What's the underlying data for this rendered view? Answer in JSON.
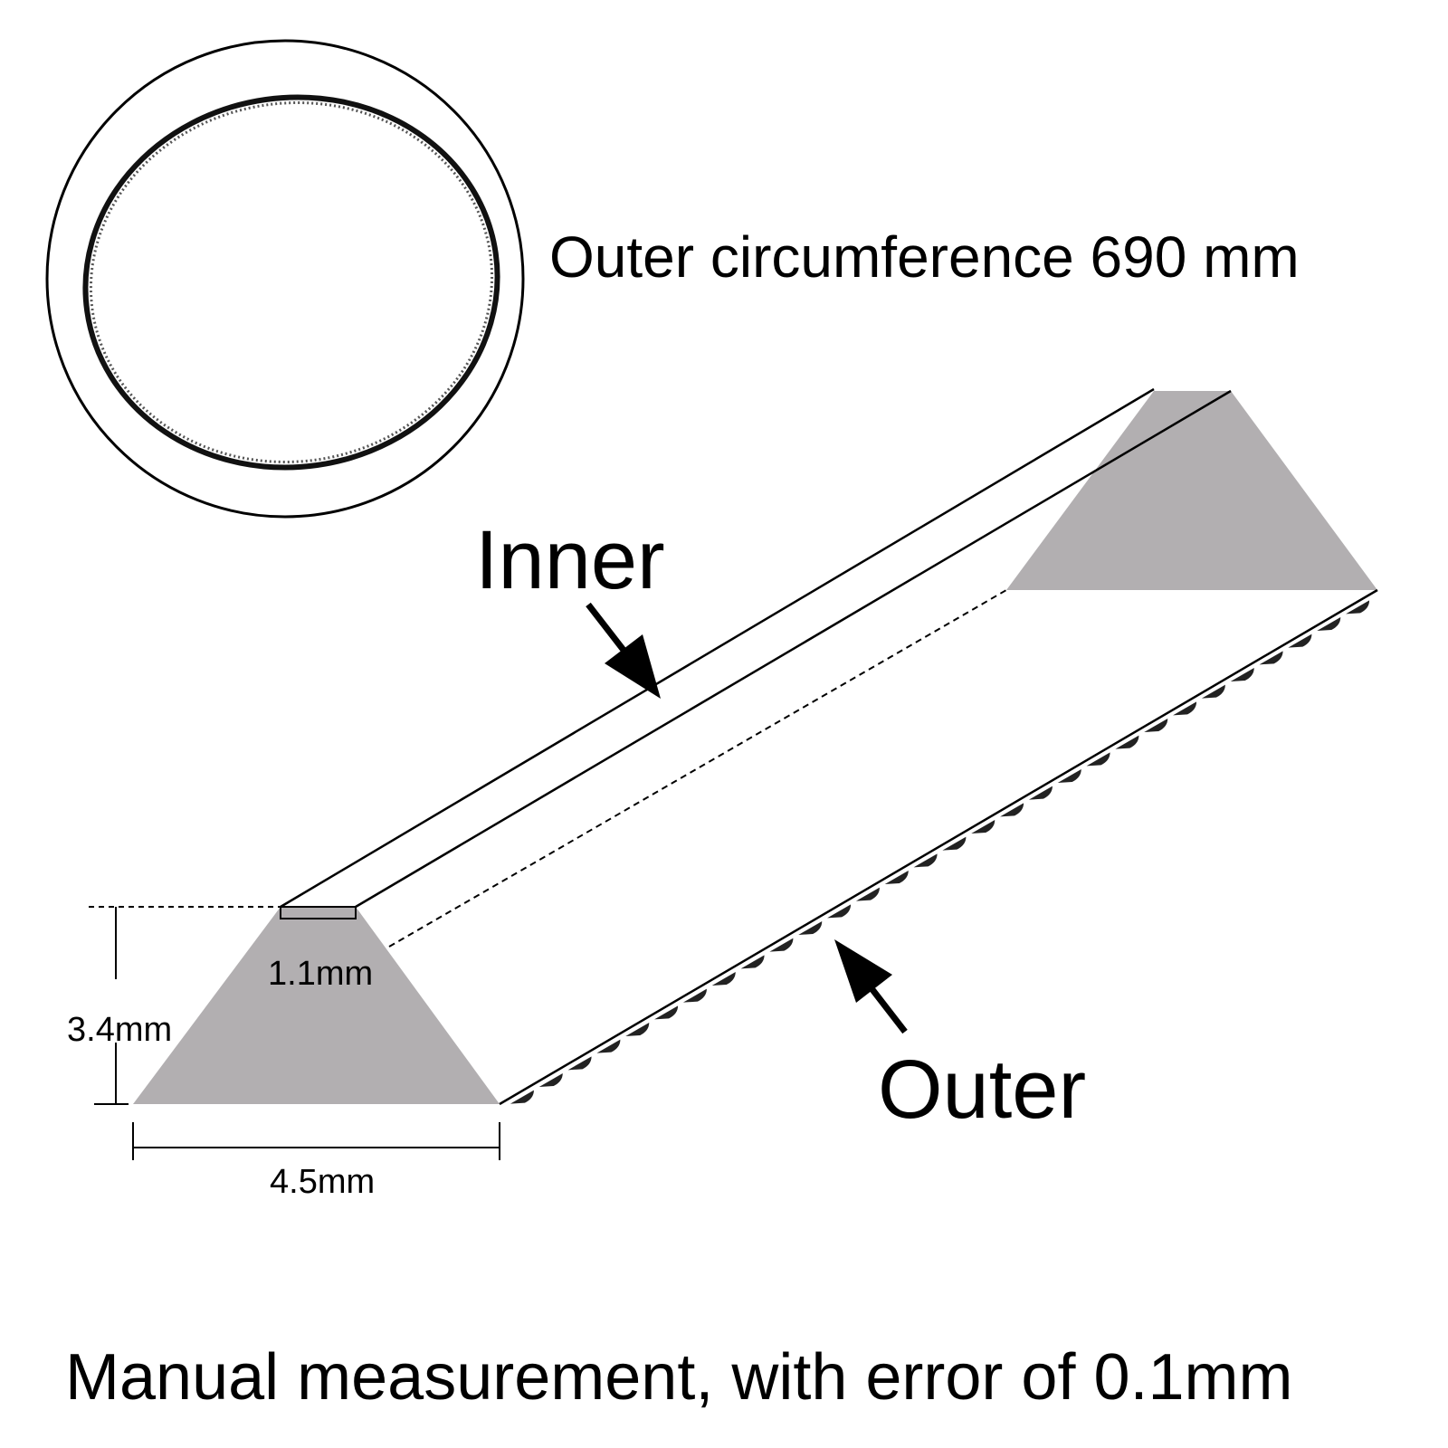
{
  "labels": {
    "circumference": "Outer circumference 690 mm",
    "inner": "Inner",
    "outer": "Outer",
    "top_width": "1.1mm",
    "height": "3.4mm",
    "bottom_width": "4.5mm",
    "footer": "Manual measurement, with error of 0.1mm"
  },
  "colors": {
    "profile_fill": "#b2afb1",
    "line": "#000000"
  }
}
